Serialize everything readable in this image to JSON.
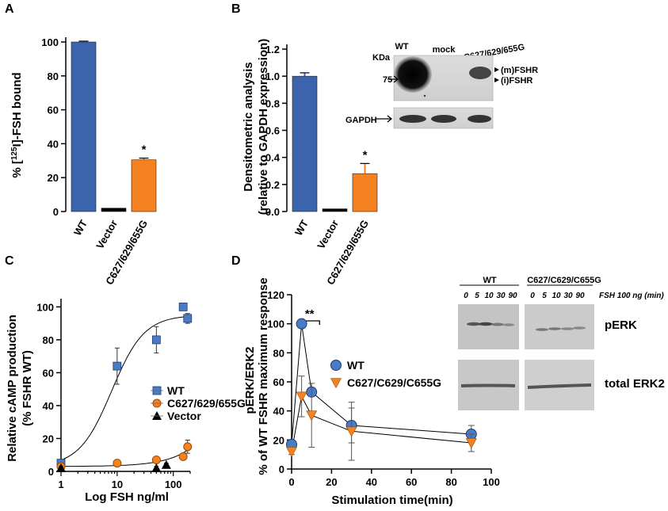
{
  "colors": {
    "blue": "#3b64ad",
    "orange": "#f58220",
    "black": "#000000",
    "marker_blue": "#4a7cc4"
  },
  "panels": {
    "a": "A",
    "b": "B",
    "c": "C",
    "d": "D"
  },
  "chart_data": [
    {
      "id": "A",
      "type": "bar",
      "ylabel": "% [125I]-FSH bound",
      "ylabel_parts": {
        "pre": "% [",
        "sup": "125",
        "post": "I]-FSH bound"
      },
      "categories": [
        "WT",
        "Vector",
        "C627/629/655G"
      ],
      "values": [
        100,
        2,
        30.5
      ],
      "errors": [
        0.5,
        0,
        1
      ],
      "colors": [
        "#3b64ad",
        "#000000",
        "#f58220"
      ],
      "significance": [
        "",
        "",
        "*"
      ],
      "ylim": [
        0,
        100
      ],
      "yticks": [
        0,
        20,
        40,
        60,
        80,
        100
      ],
      "ytick_labels": [
        "0",
        "20",
        "40",
        "60",
        "80",
        "100"
      ]
    },
    {
      "id": "B",
      "type": "bar",
      "ylabel_lines": [
        "Densitometric analysis",
        "(relative to GAPDH expression)"
      ],
      "categories": [
        "WT",
        "Vector",
        "C627/629/655G"
      ],
      "values": [
        1.0,
        0.02,
        0.28
      ],
      "errors": [
        0.025,
        0,
        0.075
      ],
      "colors": [
        "#3b64ad",
        "#000000",
        "#f58220"
      ],
      "significance": [
        "",
        "",
        "*"
      ],
      "ylim": [
        0,
        1.2
      ],
      "yticks": [
        0,
        0.2,
        0.4,
        0.6,
        0.8,
        1.0,
        1.2
      ],
      "ytick_labels": [
        "0.0",
        "0.2",
        "0.4",
        "0.6",
        "0.8",
        "1.0",
        "1.2"
      ],
      "blot": {
        "kda_label": "KDa",
        "marker": "75",
        "lanes": [
          "WT",
          "mock",
          "C627/629/655G"
        ],
        "bands": [
          "(m)FSHR",
          "(i)FSHR"
        ],
        "loading": "GAPDH"
      }
    },
    {
      "id": "C",
      "type": "scatter",
      "ylabel_lines": [
        "Relative cAMP production",
        "(% FSHR WT)"
      ],
      "xlabel": "Log FSH ng/ml",
      "xscale": "log",
      "xlim": [
        1,
        200
      ],
      "ylim": [
        0,
        105
      ],
      "xticks": [
        1,
        10,
        100
      ],
      "xtick_labels": [
        "1",
        "10",
        "100"
      ],
      "yticks": [
        0,
        20,
        40,
        60,
        80,
        100
      ],
      "ytick_labels": [
        "0",
        "20",
        "40",
        "60",
        "80",
        "100"
      ],
      "legend_position": "center-right",
      "series": [
        {
          "name": "WT",
          "marker": "square",
          "color": "#4a7cc4",
          "x": [
            1,
            10,
            50,
            150,
            180
          ],
          "y": [
            5,
            64,
            80,
            100,
            93
          ],
          "err": [
            2,
            11,
            8,
            2,
            3
          ]
        },
        {
          "name": "C627/629/655G",
          "marker": "circle",
          "color": "#f58220",
          "x": [
            1,
            10,
            50,
            150,
            180
          ],
          "y": [
            3,
            5,
            7,
            9,
            15
          ],
          "err": [
            1,
            1,
            1,
            2,
            4
          ]
        },
        {
          "name": "Vector",
          "marker": "triangle",
          "color": "#000000",
          "x": [
            1,
            50,
            75
          ],
          "y": [
            2,
            2,
            4
          ],
          "err": [
            1,
            1,
            1
          ]
        }
      ]
    },
    {
      "id": "D",
      "type": "line",
      "ylabel_lines": [
        "pERK/ERK2",
        "% of WT FSHR maximum response"
      ],
      "xlabel": "Stimulation time(min)",
      "xlim": [
        0,
        100
      ],
      "ylim": [
        0,
        120
      ],
      "xticks": [
        0,
        20,
        40,
        60,
        80,
        100
      ],
      "xtick_labels": [
        "0",
        "20",
        "40",
        "60",
        "80",
        "100"
      ],
      "yticks": [
        0,
        20,
        40,
        60,
        80,
        100,
        120
      ],
      "ytick_labels": [
        "0",
        "20",
        "40",
        "60",
        "80",
        "100",
        "120"
      ],
      "annotation": "**",
      "legend_position": "center",
      "series": [
        {
          "name": "WT",
          "marker": "circle",
          "color": "#4a7cc4",
          "x": [
            0,
            5,
            10,
            30,
            90
          ],
          "y": [
            17,
            100,
            53,
            30,
            24
          ],
          "err": [
            2,
            1,
            3,
            12,
            6
          ]
        },
        {
          "name": "C627/C629/C655G",
          "marker": "triangle-down",
          "color": "#f58220",
          "x": [
            0,
            5,
            10,
            30,
            90
          ],
          "y": [
            12,
            50,
            37,
            26,
            18
          ],
          "err": [
            2,
            14,
            22,
            20,
            6
          ]
        }
      ],
      "blot": {
        "groups": [
          "WT",
          "C627/C629/C655G"
        ],
        "lanes": [
          "0",
          "5",
          "10",
          "30",
          "90"
        ],
        "condition": "FSH 100 ng (min)",
        "rows": [
          "pERK",
          "total ERK2"
        ]
      }
    }
  ]
}
